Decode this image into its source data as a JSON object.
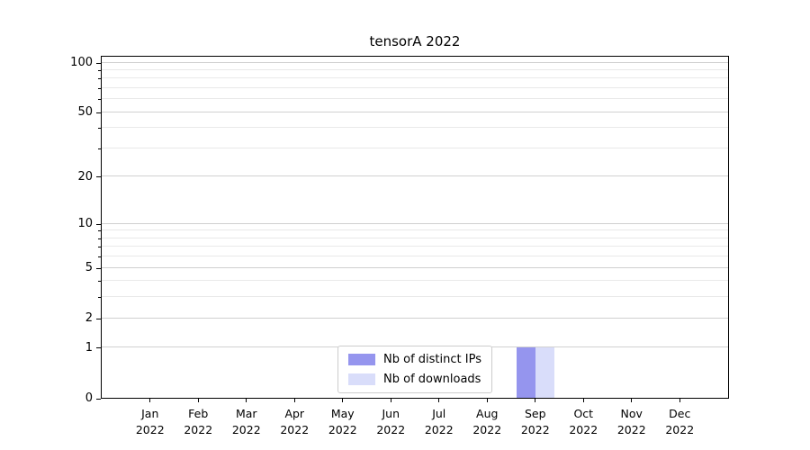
{
  "chart_data": {
    "type": "bar",
    "title": "tensorA 2022",
    "categories": [
      "Jan 2022",
      "Feb 2022",
      "Mar 2022",
      "Apr 2022",
      "May 2022",
      "Jun 2022",
      "Jul 2022",
      "Aug 2022",
      "Sep 2022",
      "Oct 2022",
      "Nov 2022",
      "Dec 2022"
    ],
    "series": [
      {
        "name": "Nb of distinct IPs",
        "color": "#9595ee",
        "values": [
          0,
          0,
          0,
          0,
          0,
          0,
          0,
          0,
          1,
          0,
          0,
          0
        ]
      },
      {
        "name": "Nb of downloads",
        "color": "#d9ddfa",
        "values": [
          0,
          0,
          0,
          0,
          0,
          0,
          0,
          0,
          1,
          0,
          0,
          0
        ]
      }
    ],
    "yscale": "log1p",
    "ylim": [
      0,
      110
    ],
    "yticks": [
      0,
      1,
      2,
      5,
      10,
      20,
      50,
      100
    ],
    "yticks_minor": [
      3,
      4,
      6,
      7,
      8,
      9,
      30,
      40,
      60,
      70,
      80,
      90
    ],
    "grid": true,
    "legend": {
      "entries": [
        "Nb of distinct IPs",
        "Nb of downloads"
      ],
      "position": "lower center"
    }
  }
}
